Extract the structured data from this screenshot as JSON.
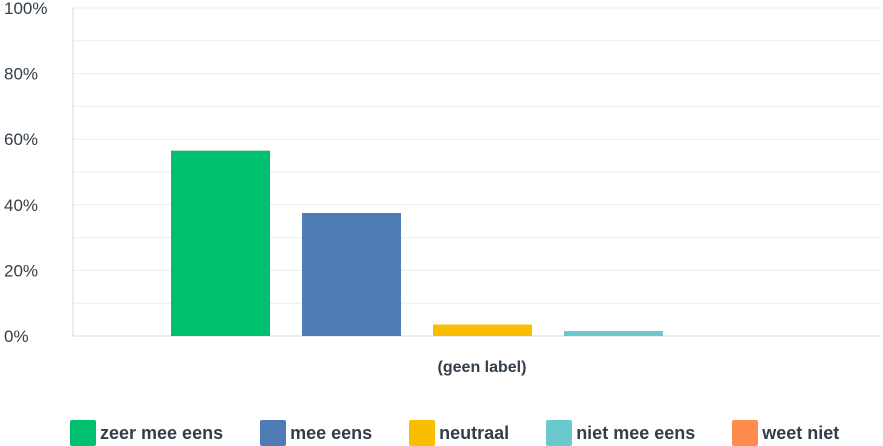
{
  "chart_data": {
    "type": "bar",
    "categories": [
      "(geen label)"
    ],
    "series": [
      {
        "name": "zeer mee eens",
        "values": [
          56.5
        ],
        "color": "#00bf6f"
      },
      {
        "name": "mee eens",
        "values": [
          37.5
        ],
        "color": "#507cb6"
      },
      {
        "name": "neutraal",
        "values": [
          3.5
        ],
        "color": "#f9be00"
      },
      {
        "name": "niet mee eens",
        "values": [
          1.5
        ],
        "color": "#6bc8cd"
      },
      {
        "name": "weet niet",
        "values": [
          0
        ],
        "color": "#ff8b4f"
      }
    ],
    "yticks": [
      "0%",
      "20%",
      "40%",
      "60%",
      "80%",
      "100%"
    ],
    "ylim": [
      0,
      100
    ],
    "grid": true,
    "legend_position": "bottom"
  }
}
